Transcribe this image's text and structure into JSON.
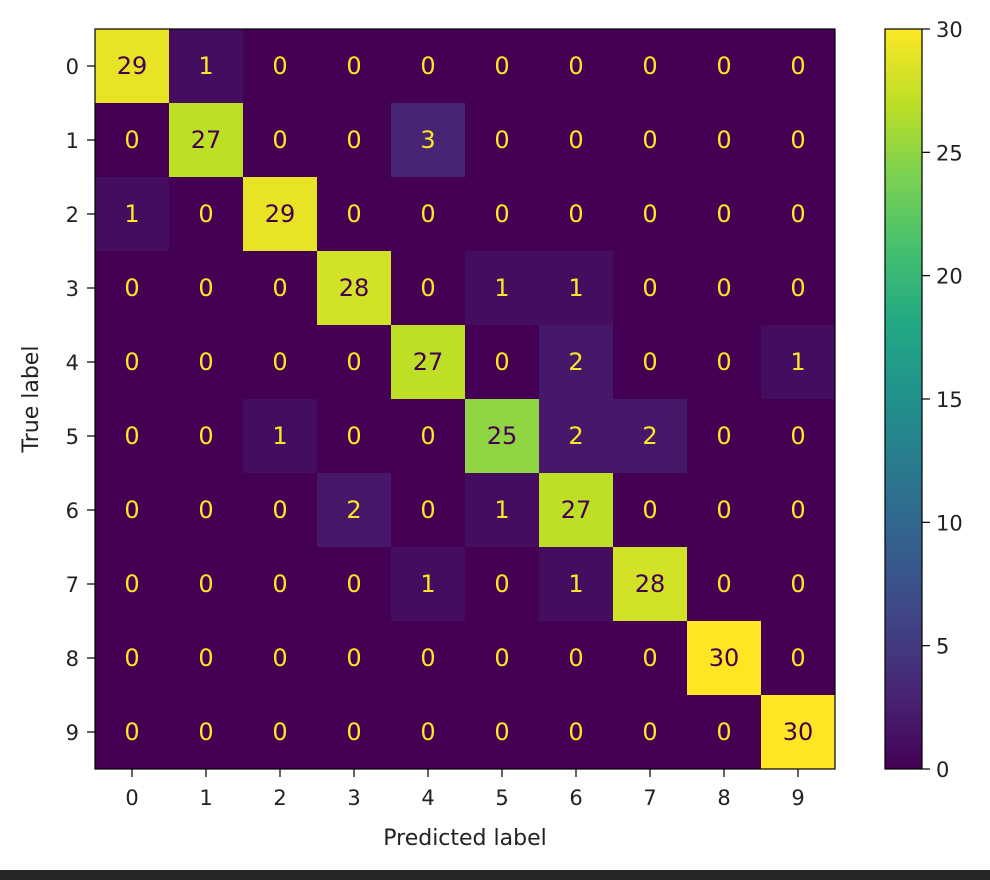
{
  "chart_data": {
    "type": "heatmap",
    "title": "",
    "xlabel": "Predicted label",
    "ylabel": "True label",
    "x_tick_labels": [
      "0",
      "1",
      "2",
      "3",
      "4",
      "5",
      "6",
      "7",
      "8",
      "9"
    ],
    "y_tick_labels": [
      "0",
      "1",
      "2",
      "3",
      "4",
      "5",
      "6",
      "7",
      "8",
      "9"
    ],
    "matrix": [
      [
        29,
        1,
        0,
        0,
        0,
        0,
        0,
        0,
        0,
        0
      ],
      [
        0,
        27,
        0,
        0,
        3,
        0,
        0,
        0,
        0,
        0
      ],
      [
        1,
        0,
        29,
        0,
        0,
        0,
        0,
        0,
        0,
        0
      ],
      [
        0,
        0,
        0,
        28,
        0,
        1,
        1,
        0,
        0,
        0
      ],
      [
        0,
        0,
        0,
        0,
        27,
        0,
        2,
        0,
        0,
        1
      ],
      [
        0,
        0,
        1,
        0,
        0,
        25,
        2,
        2,
        0,
        0
      ],
      [
        0,
        0,
        0,
        2,
        0,
        1,
        27,
        0,
        0,
        0
      ],
      [
        0,
        0,
        0,
        0,
        1,
        0,
        1,
        28,
        0,
        0
      ],
      [
        0,
        0,
        0,
        0,
        0,
        0,
        0,
        0,
        30,
        0
      ],
      [
        0,
        0,
        0,
        0,
        0,
        0,
        0,
        0,
        0,
        30
      ]
    ],
    "colormap": "viridis",
    "colorbar": {
      "range": [
        0,
        30
      ],
      "ticks": [
        0,
        5,
        10,
        15,
        20,
        25,
        30
      ],
      "tick_labels": [
        "0",
        "5",
        "10",
        "15",
        "20",
        "25",
        "30"
      ]
    }
  }
}
